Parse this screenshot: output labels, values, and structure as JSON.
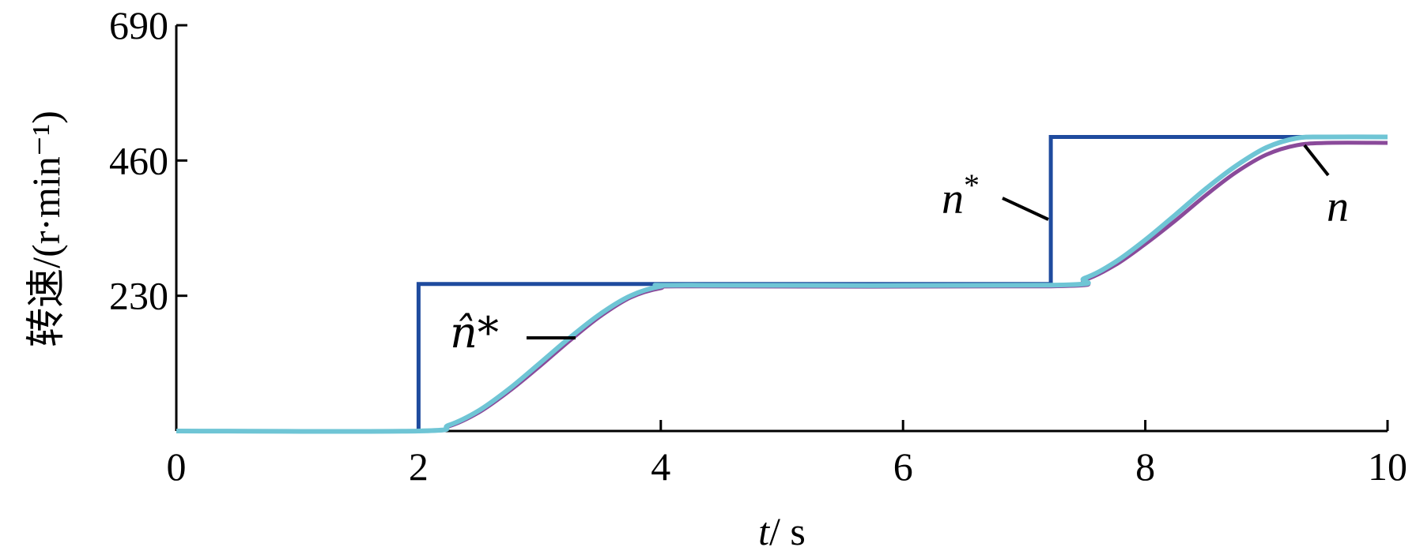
{
  "chart_data": {
    "type": "line",
    "title": "",
    "xlabel": "t / s",
    "xlabel_var": "t",
    "xlabel_unit": "/ s",
    "ylabel": "转速/(r·min⁻¹)",
    "xlim": [
      0,
      10
    ],
    "ylim": [
      0,
      690
    ],
    "xticks": [
      0,
      2,
      4,
      6,
      8,
      10
    ],
    "yticks": [
      230,
      460,
      690
    ],
    "xtick_labels": [
      "0",
      "2",
      "4",
      "6",
      "8",
      "10"
    ],
    "ytick_labels": [
      "230",
      "460",
      "690"
    ],
    "grid": false,
    "legend": "none (inline labels)",
    "series": [
      {
        "name": "n*",
        "color": "#1f4b9e",
        "x": [
          0,
          2,
          2,
          7.22,
          7.22,
          10
        ],
        "y": [
          0,
          0,
          250,
          250,
          500,
          500
        ]
      },
      {
        "name": "n",
        "color": "#8a4a9a",
        "x": [
          0,
          2,
          2.25,
          2.5,
          2.75,
          3.0,
          3.25,
          3.5,
          3.75,
          4.0,
          4.25,
          7.22,
          7.5,
          7.75,
          8.0,
          8.25,
          8.5,
          8.75,
          9.0,
          9.25,
          9.5,
          10
        ],
        "y": [
          0,
          0,
          8,
          32,
          68,
          110,
          154,
          195,
          227,
          243,
          246,
          246,
          257,
          282,
          318,
          358,
          401,
          440,
          470,
          486,
          490,
          490
        ]
      },
      {
        "name": "n̂*",
        "color": "#6fc5d5",
        "x": [
          0,
          2,
          2.25,
          2.5,
          2.75,
          3.0,
          3.25,
          3.5,
          3.75,
          4.0,
          4.25,
          7.22,
          7.5,
          7.75,
          8.0,
          8.25,
          8.5,
          8.75,
          9.0,
          9.25,
          9.5,
          10
        ],
        "y": [
          0,
          0,
          10,
          35,
          72,
          115,
          159,
          199,
          230,
          246,
          248,
          248,
          260,
          287,
          325,
          368,
          412,
          451,
          482,
          498,
          500,
          500
        ]
      }
    ],
    "annotations": [
      {
        "text": "n*",
        "base": "n",
        "sup": "*",
        "target_series": "n*"
      },
      {
        "text": "n̂*",
        "base": "n̂",
        "sup": "*",
        "target_series": "n̂*"
      },
      {
        "text": "n",
        "base": "n",
        "sup": "",
        "target_series": "n"
      }
    ]
  }
}
